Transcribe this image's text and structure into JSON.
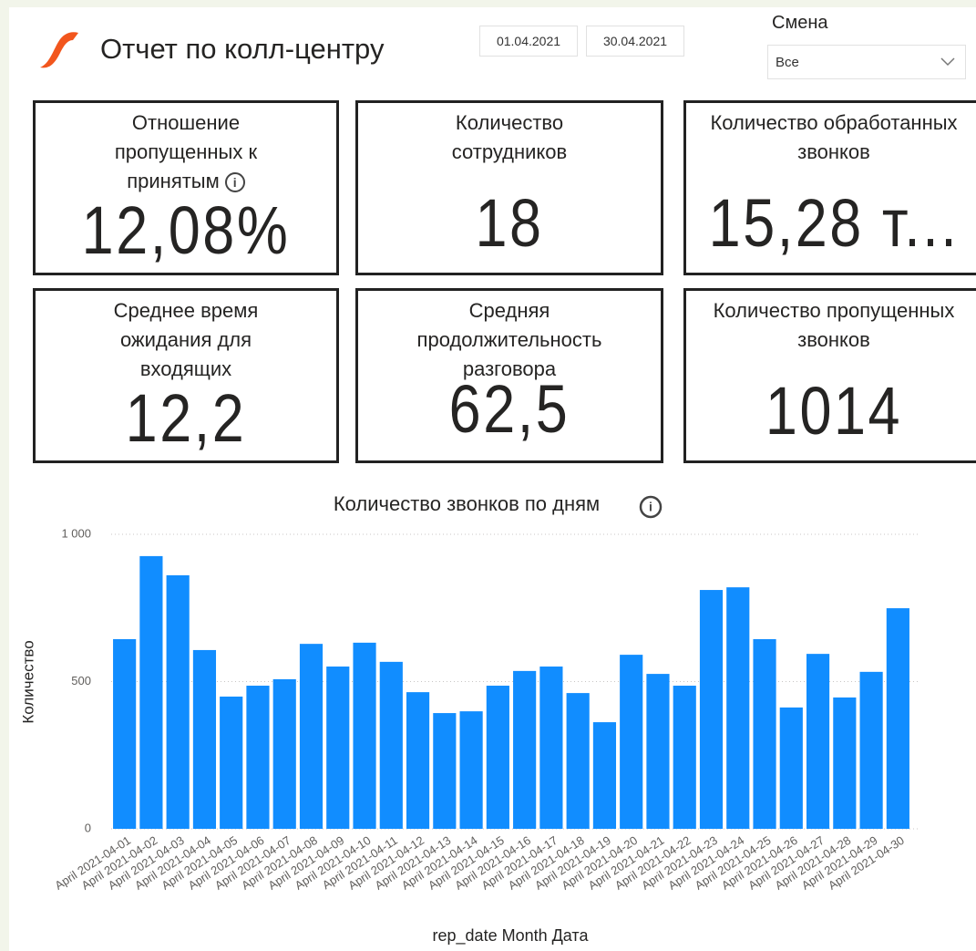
{
  "header": {
    "title": "Отчет по колл-центру"
  },
  "filters": {
    "date_from": "01.04.2021",
    "date_to": "30.04.2021",
    "shift_label": "Смена",
    "shift_value": "Все"
  },
  "cards": [
    {
      "title": "Отношение пропущенных к принятым",
      "value": "12,08%"
    },
    {
      "title": "Количество сотрудников",
      "value": "18"
    },
    {
      "title": "Количество обработанных звонков",
      "value": "15,28 т..."
    },
    {
      "title": "Среднее время ожидания для входящих",
      "value": "12,2"
    },
    {
      "title": "Средняя продолжительность разговора",
      "value": "62,5"
    },
    {
      "title": "Количество пропущенных звонков",
      "value": "1014"
    }
  ],
  "chart_data": {
    "type": "bar",
    "title": "Количество звонков по дням",
    "x_label": "rep_date Month Дата",
    "y_label": "Количество",
    "categories": [
      "April 2021-04-01",
      "April 2021-04-02",
      "April 2021-04-03",
      "April 2021-04-04",
      "April 2021-04-05",
      "April 2021-04-06",
      "April 2021-04-07",
      "April 2021-04-08",
      "April 2021-04-09",
      "April 2021-04-10",
      "April 2021-04-11",
      "April 2021-04-12",
      "April 2021-04-13",
      "April 2021-04-14",
      "April 2021-04-15",
      "April 2021-04-16",
      "April 2021-04-17",
      "April 2021-04-18",
      "April 2021-04-19",
      "April 2021-04-20",
      "April 2021-04-21",
      "April 2021-04-22",
      "April 2021-04-23",
      "April 2021-04-24",
      "April 2021-04-25",
      "April 2021-04-26",
      "April 2021-04-27",
      "April 2021-04-28",
      "April 2021-04-29",
      "April 2021-04-30"
    ],
    "values": [
      644,
      926,
      861,
      607,
      449,
      486,
      508,
      628,
      551,
      632,
      567,
      464,
      393,
      399,
      486,
      536,
      551,
      461,
      362,
      591,
      526,
      486,
      811,
      820,
      644,
      412,
      594,
      446,
      533,
      749
    ],
    "color": "#118dff",
    "ylim": [
      0,
      1000
    ],
    "yticks": [
      0,
      500,
      {
        "value": 1000,
        "label": "1 000"
      }
    ],
    "grid": true
  }
}
